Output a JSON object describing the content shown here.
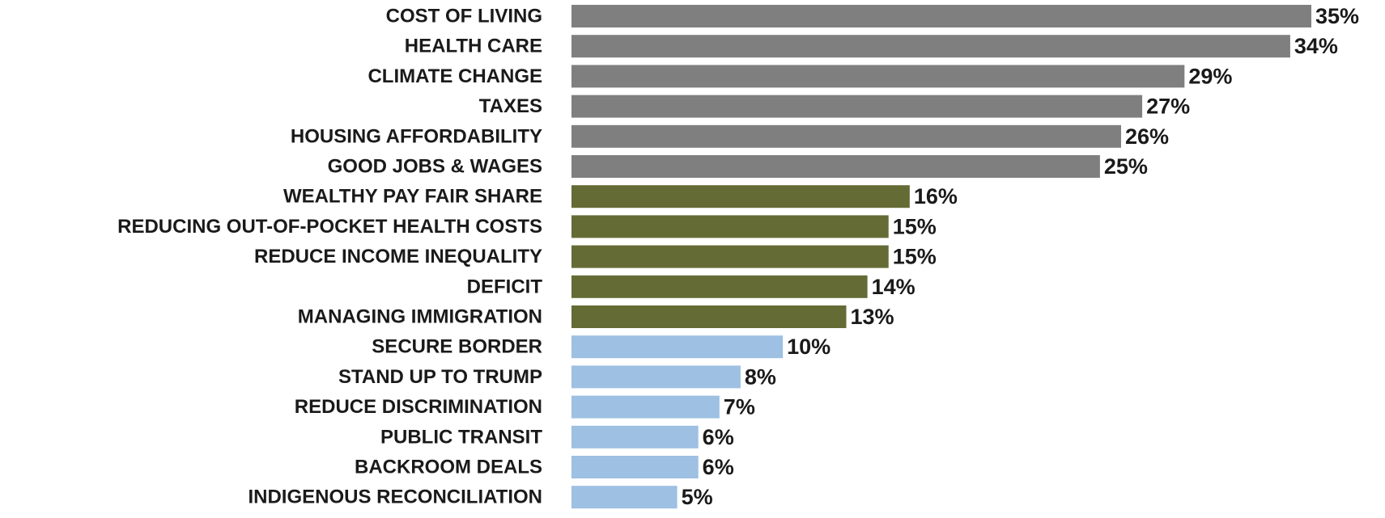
{
  "chart_data": {
    "type": "bar",
    "orientation": "horizontal",
    "categories": [
      "COST OF LIVING",
      "HEALTH CARE",
      "CLIMATE CHANGE",
      "TAXES",
      "HOUSING AFFORDABILITY",
      "GOOD JOBS & WAGES",
      "WEALTHY PAY FAIR SHARE",
      "REDUCING OUT-OF-POCKET HEALTH COSTS",
      "REDUCE INCOME INEQUALITY",
      "DEFICIT",
      "MANAGING IMMIGRATION",
      "SECURE BORDER",
      "STAND UP TO TRUMP",
      "REDUCE DISCRIMINATION",
      "PUBLIC TRANSIT",
      "BACKROOM DEALS",
      "INDIGENOUS RECONCILIATION"
    ],
    "values": [
      35,
      34,
      29,
      27,
      26,
      25,
      16,
      15,
      15,
      14,
      13,
      10,
      8,
      7,
      6,
      6,
      5
    ],
    "value_labels": [
      "35%",
      "34%",
      "29%",
      "27%",
      "26%",
      "25%",
      "16%",
      "15%",
      "15%",
      "14%",
      "13%",
      "10%",
      "8%",
      "7%",
      "6%",
      "6%",
      "5%"
    ],
    "bar_colors": [
      "#7f7f7f",
      "#7f7f7f",
      "#7f7f7f",
      "#7f7f7f",
      "#7f7f7f",
      "#7f7f7f",
      "#656b35",
      "#656b35",
      "#656b35",
      "#656b35",
      "#656b35",
      "#9dc0e3",
      "#9dc0e3",
      "#9dc0e3",
      "#9dc0e3",
      "#9dc0e3",
      "#9dc0e3"
    ],
    "xlim": [
      0,
      35
    ],
    "grid": false,
    "legend": "none",
    "title": "",
    "xlabel": "",
    "ylabel": ""
  }
}
